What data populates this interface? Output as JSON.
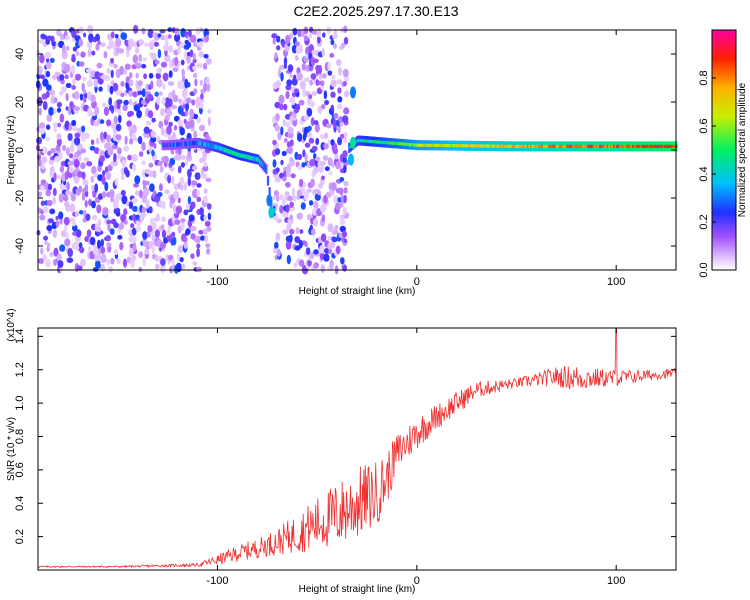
{
  "title": "C2E2.2025.297.17.30.E13",
  "colors": {
    "spec_low": "#e2c8ff",
    "spec_mid": "#2fe0c0",
    "spec_high": "#e01020",
    "snr_line": "#ee3030"
  },
  "colorbar": {
    "label": "Normalized spectral amplitude",
    "ticks": [
      "0.0",
      "0.2",
      "0.4",
      "0.6",
      "0.8"
    ],
    "tick_values": [
      0.0,
      0.2,
      0.4,
      0.6,
      0.8
    ],
    "range": [
      0,
      1
    ],
    "colormap": "rainbow (violet-blue-cyan-green-yellow-red-magenta)"
  },
  "chart_data": [
    {
      "type": "heatmap",
      "title": "C2E2.2025.297.17.30.E13",
      "xlabel": "Height of straight line (km)",
      "ylabel": "Frequency (Hz)",
      "xlim": [
        -190,
        130
      ],
      "ylim": [
        -50,
        50
      ],
      "xticks": [
        -100,
        0,
        100
      ],
      "xtick_labels": [
        "-100",
        "0",
        "100"
      ],
      "yticks": [
        -40,
        -20,
        0,
        20,
        40
      ],
      "ytick_labels": [
        "-40",
        "-20",
        "0",
        "20",
        "40"
      ],
      "regions": [
        {
          "x_from": -190,
          "x_to": -105,
          "content": "scattered noise, amplitude 0.05-0.3"
        },
        {
          "x_from": -105,
          "x_to": -72,
          "content": "blank except narrow line near 0 Hz"
        },
        {
          "x_from": -72,
          "x_to": -35,
          "content": "scattered noise"
        },
        {
          "x_from": -35,
          "x_to": 130,
          "content": "narrow line near 1 Hz, amplitude 0.5-1.0"
        }
      ],
      "ridge": [
        {
          "x": -125,
          "y": 2,
          "amp": 0.25
        },
        {
          "x": -110,
          "y": 3,
          "amp": 0.3
        },
        {
          "x": -100,
          "y": 1,
          "amp": 0.4
        },
        {
          "x": -90,
          "y": -2,
          "amp": 0.45
        },
        {
          "x": -80,
          "y": -4,
          "amp": 0.4
        },
        {
          "x": -76,
          "y": -8,
          "amp": 0.3
        },
        {
          "x": -73,
          "y": -26,
          "amp": 0.4
        },
        {
          "x": -30,
          "y": 4,
          "amp": 0.4
        },
        {
          "x": 0,
          "y": 2,
          "amp": 0.6
        },
        {
          "x": 50,
          "y": 1.5,
          "amp": 0.75
        },
        {
          "x": 100,
          "y": 1.5,
          "amp": 0.85
        },
        {
          "x": 130,
          "y": 1.5,
          "amp": 0.9
        }
      ]
    },
    {
      "type": "line",
      "xlabel": "Height of straight line (km)",
      "ylabel": "SNR (10 * v/v)",
      "multiplier": "(x10^4)",
      "xlim": [
        -190,
        130
      ],
      "ylim": [
        0,
        1.45
      ],
      "xticks": [
        -100,
        0,
        100
      ],
      "xtick_labels": [
        "-100",
        "0",
        "100"
      ],
      "yticks": [
        0.2,
        0.4,
        0.6,
        0.8,
        1.0,
        1.2,
        1.4
      ],
      "ytick_labels": [
        "0.2",
        "0.4",
        "0.6",
        "0.8",
        "1.0",
        "1.2",
        "1.4"
      ],
      "series": [
        {
          "x": [
            -190,
            -150,
            -110,
            -100,
            -90,
            -80,
            -70,
            -60,
            -50,
            -40,
            -30,
            -20,
            -15,
            -10,
            0,
            10,
            20,
            30,
            40,
            50,
            60,
            70,
            80,
            90,
            100,
            110,
            120,
            130
          ],
          "y": [
            0.02,
            0.02,
            0.03,
            0.06,
            0.1,
            0.13,
            0.17,
            0.22,
            0.28,
            0.33,
            0.4,
            0.46,
            0.55,
            0.7,
            0.82,
            0.92,
            1.0,
            1.08,
            1.1,
            1.12,
            1.14,
            1.16,
            1.15,
            1.15,
            1.15,
            1.16,
            1.17,
            1.18
          ],
          "spread": [
            0.005,
            0.005,
            0.01,
            0.03,
            0.05,
            0.06,
            0.08,
            0.12,
            0.16,
            0.2,
            0.22,
            0.2,
            0.16,
            0.12,
            0.1,
            0.08,
            0.07,
            0.05,
            0.04,
            0.03,
            0.04,
            0.06,
            0.08,
            0.06,
            0.05,
            0.04,
            0.03,
            0.03
          ]
        }
      ]
    }
  ]
}
